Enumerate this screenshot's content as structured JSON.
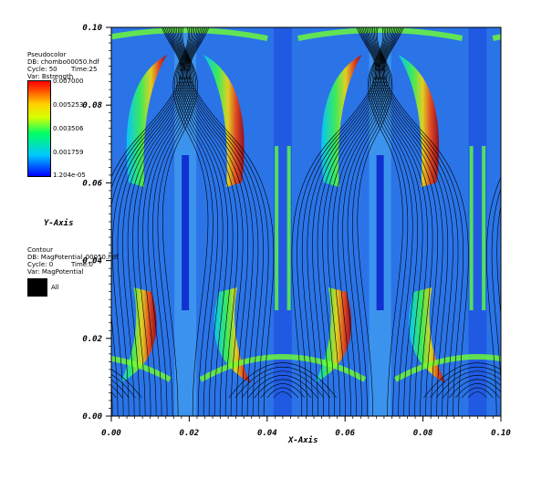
{
  "pseudocolor_legend": {
    "heading": "Pseudocolor",
    "db": "DB: chombo00050.hdf",
    "cycle": "Cycle: 50",
    "time": "Time:25",
    "var": "Var: Bstrength",
    "max_label": "0.007000",
    "ticks": [
      "0.005253",
      "0.003506",
      "0.001759"
    ],
    "min_label": "1.204e-05"
  },
  "contour_legend": {
    "heading": "Contour",
    "db": "DB: MagPotential_00050.hdf",
    "cycle": "Cycle: 0",
    "time": "Time:0",
    "var": "Var: MagPotential",
    "swatch_label": "All"
  },
  "chart_data": {
    "type": "heatmap",
    "description_fields": {
      "colorbar_min": 1.204e-05,
      "colorbar_max": 0.007,
      "colormap": [
        "#0000ff",
        "#00c8ff",
        "#00ff66",
        "#d8ff00",
        "#ffd000",
        "#ff5000",
        "#ff0000"
      ]
    },
    "xlabel": "X-Axis",
    "ylabel": "Y-Axis",
    "xlim": [
      0.0,
      0.1
    ],
    "ylim": [
      0.0,
      0.1
    ],
    "xticks": [
      "0.00",
      "0.02",
      "0.04",
      "0.06",
      "0.08",
      "0.10"
    ],
    "yticks": [
      "0.00",
      "0.02",
      "0.04",
      "0.06",
      "0.08",
      "0.10"
    ]
  }
}
